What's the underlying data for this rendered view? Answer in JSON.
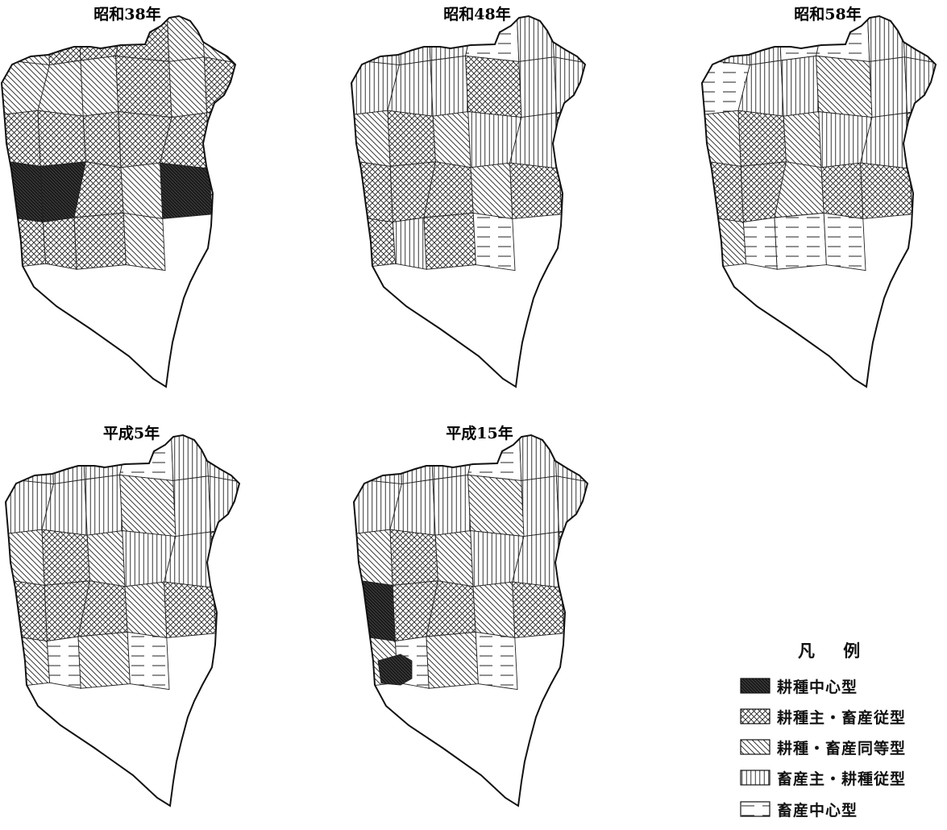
{
  "maps": [
    {
      "title": "昭和38年",
      "classes": [
        "d",
        "c",
        "c",
        "c",
        "d",
        "d",
        "d",
        "d",
        "d",
        "c",
        "d",
        "c",
        "c",
        "c",
        "c",
        "c",
        "c",
        "d",
        "b",
        "b",
        "c",
        "d",
        "b",
        "c",
        "c",
        "c",
        "c",
        "d"
      ],
      "extra": null
    },
    {
      "title": "昭和48年",
      "classes": [
        "v",
        "v",
        "v",
        "h",
        "v",
        "v",
        "v",
        "v",
        "v",
        "c",
        "v",
        "v",
        "d",
        "c",
        "d",
        "v",
        "v",
        "c",
        "c",
        "c",
        "c",
        "d",
        "c",
        "d",
        "c",
        "v",
        "c",
        "h"
      ],
      "extra": null
    },
    {
      "title": "昭和58年",
      "classes": [
        "v",
        "v",
        "h",
        "h",
        "v",
        "v",
        "h",
        "v",
        "v",
        "d",
        "v",
        "v",
        "d",
        "c",
        "d",
        "v",
        "v",
        "c",
        "c",
        "c",
        "d",
        "c",
        "c",
        "v",
        "d",
        "h",
        "h",
        "h"
      ],
      "extra": null
    },
    {
      "title": "平成5年",
      "classes": [
        "v",
        "v",
        "v",
        "h",
        "v",
        "v",
        "v",
        "v",
        "v",
        "d",
        "v",
        "v",
        "d",
        "c",
        "d",
        "v",
        "v",
        "c",
        "c",
        "c",
        "c",
        "d",
        "c",
        "c",
        "d",
        "h",
        "d",
        "h"
      ],
      "extra": null
    },
    {
      "title": "平成15年",
      "classes": [
        "v",
        "v",
        "v",
        "h",
        "v",
        "v",
        "v",
        "v",
        "v",
        "d",
        "v",
        "v",
        "d",
        "c",
        "d",
        "v",
        "v",
        "c",
        "b",
        "c",
        "c",
        "d",
        "c",
        "c",
        "d",
        "h",
        "d",
        "h"
      ],
      "extra": "b"
    }
  ],
  "legend": {
    "title": "凡 例",
    "items": [
      {
        "key": "b",
        "label": "耕種中心型"
      },
      {
        "key": "c",
        "label": "耕種主・畜産従型"
      },
      {
        "key": "d",
        "label": "耕種・畜産同等型"
      },
      {
        "key": "v",
        "label": "畜産主・耕種従型"
      },
      {
        "key": "h",
        "label": "畜産中心型"
      }
    ]
  }
}
